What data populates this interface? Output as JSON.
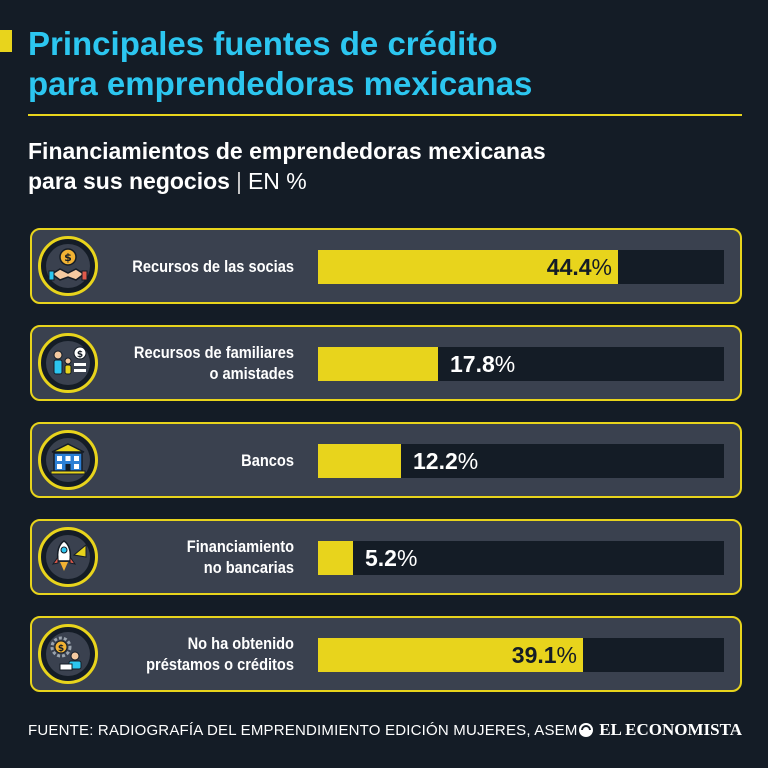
{
  "title": {
    "line1": "Principales fuentes de crédito",
    "line2": "para emprendedoras mexicanas"
  },
  "subtitle": {
    "line1": "Financiamientos de emprendedoras mexicanas",
    "line2": "para sus negocios",
    "separator": "|",
    "unit": "EN %"
  },
  "chart_data": {
    "type": "bar",
    "orientation": "horizontal",
    "title": "Financiamientos de emprendedoras mexicanas para sus negocios",
    "unit": "EN %",
    "xlim": [
      0,
      60
    ],
    "categories": [
      "Recursos de las socias",
      "Recursos de familiares o amistades",
      "Bancos",
      "Financiamiento no bancarias",
      "No ha obtenido préstamos o créditos"
    ],
    "values": [
      44.4,
      17.8,
      12.2,
      5.2,
      39.1
    ],
    "value_labels": [
      "44.4",
      "17.8",
      "12.2",
      "5.2",
      "39.1"
    ],
    "label_lines": [
      [
        "Recursos de las socias"
      ],
      [
        "Recursos de familiares",
        "o amistades"
      ],
      [
        "Bancos"
      ],
      [
        "Financiamiento",
        "no bancarias"
      ],
      [
        "No ha obtenido",
        "préstamos o créditos"
      ]
    ],
    "icons": [
      "handshake-coin-icon",
      "family-money-icon",
      "bank-icon",
      "rocket-growth-icon",
      "worker-coin-gear-icon"
    ],
    "percent_sign": "%"
  },
  "footer": {
    "source": "FUENTE: RADIOGRAFÍA DEL EMPRENDIMIENTO EDICIÓN MUJERES, ASEM",
    "logo": "EL ECONOMISTA"
  },
  "colors": {
    "background": "#141c26",
    "accent": "#e8d41c",
    "title": "#2cc6f0",
    "row": "#3a414f"
  }
}
